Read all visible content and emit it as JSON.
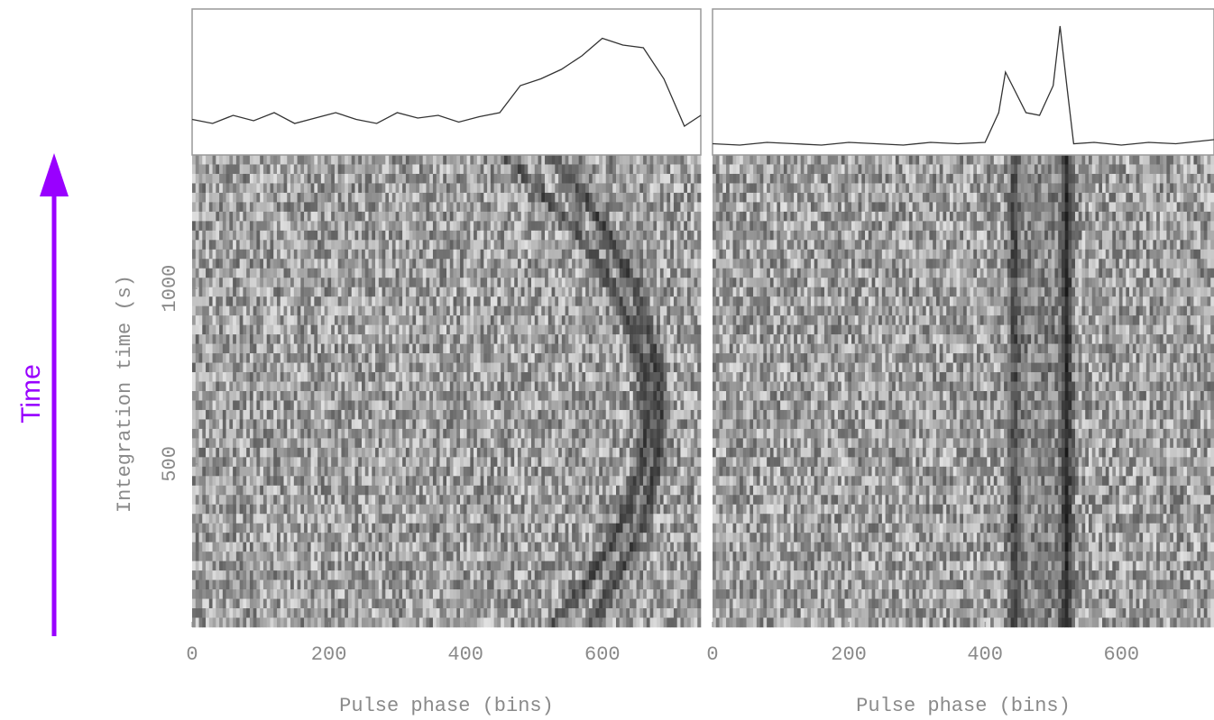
{
  "annotation": "Time",
  "chart_data": [
    {
      "type": "line",
      "xlabel": "Pulse phase (bins)",
      "ylabel": "Integration time (s)",
      "x": [
        0,
        30,
        60,
        90,
        120,
        150,
        180,
        210,
        240,
        270,
        300,
        330,
        360,
        390,
        420,
        450,
        480,
        510,
        540,
        570,
        600,
        630,
        660,
        690,
        720,
        744
      ],
      "values": [
        0.25,
        0.22,
        0.28,
        0.24,
        0.3,
        0.22,
        0.26,
        0.3,
        0.25,
        0.22,
        0.3,
        0.26,
        0.28,
        0.23,
        0.27,
        0.3,
        0.5,
        0.55,
        0.62,
        0.72,
        0.85,
        0.8,
        0.78,
        0.55,
        0.2,
        0.28
      ],
      "axis": "y2",
      "y2lim": [
        0,
        1
      ],
      "color": "#333333",
      "xlim": [
        0,
        744
      ],
      "xticks": [
        0,
        200,
        400,
        600
      ],
      "ylim": [
        35,
        1380
      ],
      "yticks": [
        500,
        1000
      ]
    },
    {
      "type": "line",
      "xlabel": "Pulse phase (bins)",
      "x": [
        0,
        40,
        80,
        120,
        160,
        200,
        240,
        280,
        320,
        360,
        400,
        420,
        430,
        440,
        460,
        480,
        500,
        510,
        520,
        530,
        560,
        600,
        640,
        680,
        736
      ],
      "values": [
        0.07,
        0.06,
        0.08,
        0.07,
        0.06,
        0.08,
        0.07,
        0.06,
        0.08,
        0.07,
        0.08,
        0.3,
        0.6,
        0.5,
        0.3,
        0.28,
        0.5,
        0.94,
        0.5,
        0.07,
        0.08,
        0.06,
        0.08,
        0.07,
        0.1
      ],
      "axis": "y2",
      "y2lim": [
        0,
        1
      ],
      "color": "#333333",
      "xlim": [
        0,
        736
      ],
      "xticks": [
        0,
        200,
        400,
        600
      ]
    }
  ]
}
